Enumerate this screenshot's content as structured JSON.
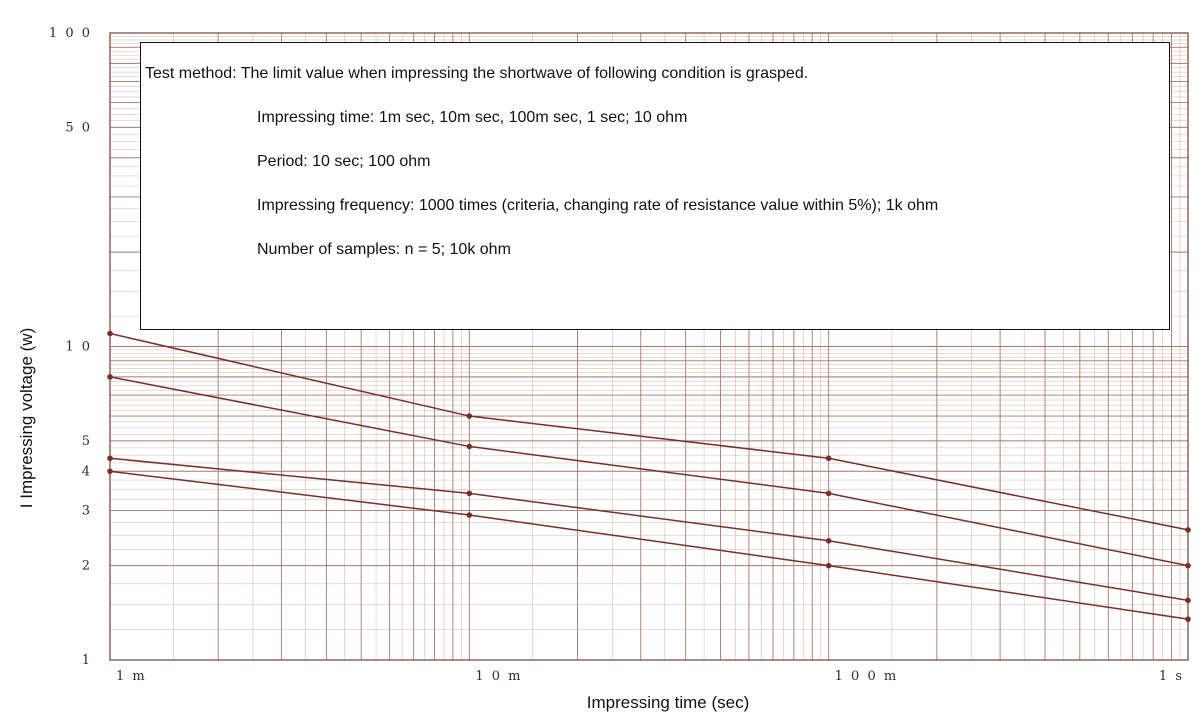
{
  "chart_data": {
    "type": "line",
    "scale": {
      "x": "log",
      "y": "log"
    },
    "xlabel": "Impressing time (sec)",
    "ylabel": "I Impressing voltage (w)",
    "xlim": [
      0.001,
      1
    ],
    "ylim": [
      1,
      100
    ],
    "x_tick_labels": [
      {
        "value": 0.001,
        "label": "1 m"
      },
      {
        "value": 0.01,
        "label": "1 0 m"
      },
      {
        "value": 0.1,
        "label": "1 0 0 m"
      },
      {
        "value": 1,
        "label": "1 s"
      }
    ],
    "y_tick_labels": [
      {
        "value": 100,
        "label": "1 0 0"
      },
      {
        "value": 50,
        "label": "5 0"
      },
      {
        "value": 10,
        "label": "1 0"
      },
      {
        "value": 5,
        "label": "5"
      },
      {
        "value": 4,
        "label": "4"
      },
      {
        "value": 3,
        "label": "3"
      },
      {
        "value": 2,
        "label": "2"
      },
      {
        "value": 1,
        "label": "1"
      }
    ],
    "grid": true,
    "colors": {
      "grid": "#c9a49a",
      "grid_major": "#a8776c",
      "series": "#7a2e2a",
      "frame": "#8a5a50"
    },
    "series": [
      {
        "x": [
          0.001,
          0.01,
          0.1,
          1
        ],
        "y": [
          11.0,
          6.0,
          4.4,
          2.6
        ]
      },
      {
        "x": [
          0.001,
          0.01,
          0.1,
          1
        ],
        "y": [
          8.0,
          4.8,
          3.4,
          2.0
        ]
      },
      {
        "x": [
          0.001,
          0.01,
          0.1,
          1
        ],
        "y": [
          4.4,
          3.4,
          2.4,
          1.55
        ]
      },
      {
        "x": [
          0.001,
          0.01,
          0.1,
          1
        ],
        "y": [
          4.0,
          2.9,
          2.0,
          1.35
        ]
      }
    ]
  },
  "note": {
    "lines": [
      "Test method: The limit value when impressing the shortwave of following condition is grasped.",
      "Impressing time: 1m sec, 10m sec, 100m sec, 1 sec; 10 ohm",
      "Period: 10 sec; 100 ohm",
      "Impressing frequency: 1000 times (criteria, changing rate of resistance value within 5%); 1k ohm",
      "Number of samples: n = 5; 10k ohm"
    ]
  }
}
